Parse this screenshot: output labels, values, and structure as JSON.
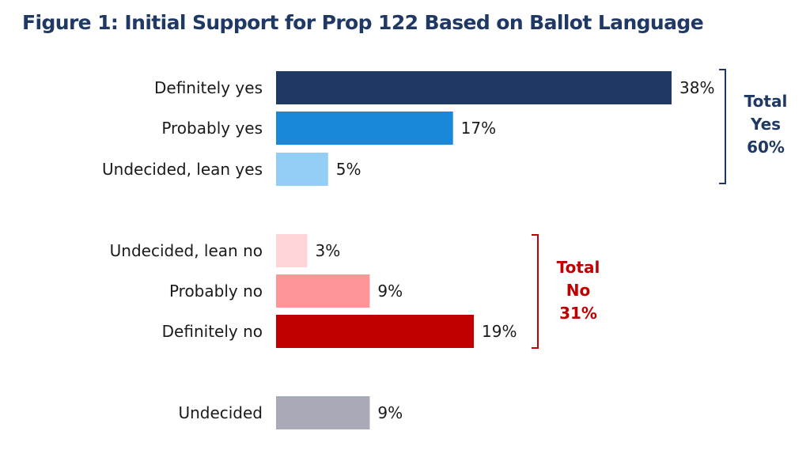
{
  "chart_data": {
    "type": "bar",
    "orientation": "horizontal",
    "title": "Figure 1: Initial Support for Prop 122 Based on Ballot Language",
    "xlabel": "",
    "ylabel": "",
    "xlim": [
      0,
      38
    ],
    "grid": false,
    "categories": [
      "Definitely yes",
      "Probably yes",
      "Undecided, lean yes",
      "Undecided, lean no",
      "Probably no",
      "Definitely no",
      "Undecided"
    ],
    "values": [
      38,
      17,
      5,
      3,
      9,
      19,
      9
    ],
    "value_labels": [
      "38%",
      "17%",
      "5%",
      "3%",
      "9%",
      "19%",
      "9%"
    ],
    "colors": [
      "#1f3864",
      "#1a88d8",
      "#94cdf5",
      "#fed5d6",
      "#fe9596",
      "#c00000",
      "#a8aab8"
    ],
    "groups": [
      {
        "name": "yes",
        "indices": [
          0,
          1,
          2
        ],
        "label_lines": [
          "Total",
          "Yes",
          "60%"
        ],
        "color": "#1f3864"
      },
      {
        "name": "no",
        "indices": [
          3,
          4,
          5
        ],
        "label_lines": [
          "Total",
          "No",
          "31%"
        ],
        "color": "#c00000"
      }
    ]
  }
}
